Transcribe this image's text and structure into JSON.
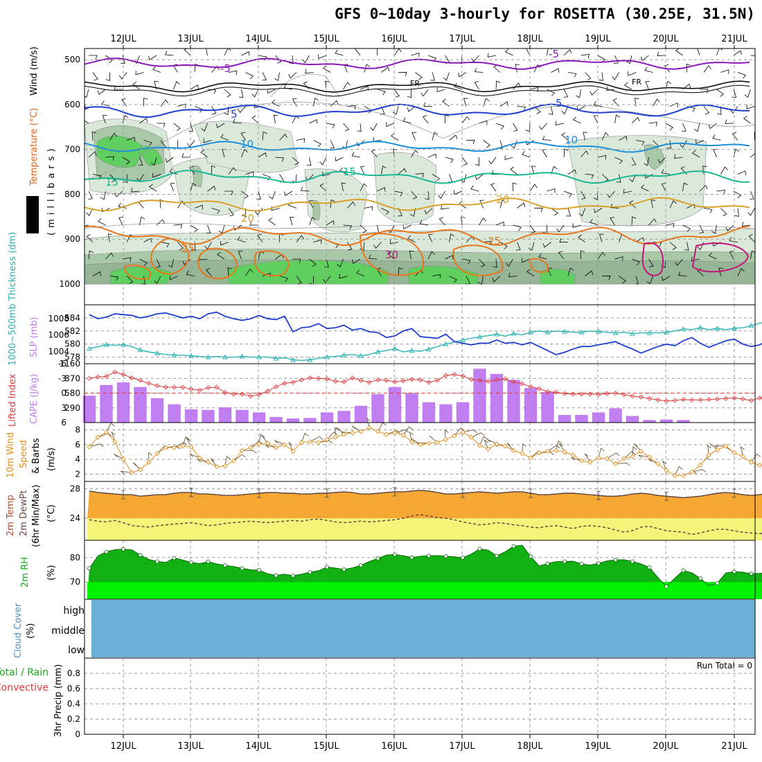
{
  "title": "GFS 0~10day 3-hourly for ROSETTA (30.25E, 31.5N)",
  "colors": {
    "rh_light": "#dbe9db",
    "rh_mid": "#a8c8a8",
    "rh_dark": "#96b496",
    "rh_green": "#5fcf5f",
    "t_minus5": "#8a17b8",
    "t_fr": "#000000",
    "t_5": "#1f3fd0",
    "t_10": "#1a8fdc",
    "t_15": "#17b891",
    "t_20": "#d9a12a",
    "t_25": "#e8761a",
    "t_30": "#c4157a",
    "slp": "#1f3fd0",
    "thick": "#2ab3b3",
    "li": "#e03a3a",
    "cape": "#c07ef0",
    "wind": "#e3901a",
    "barb": "#6b5538",
    "temp_fill": "#f5a733",
    "dew_fill": "#f2f57a",
    "temp_line": "#5a4040",
    "rh_dark_fill": "#12b012",
    "rh_bright": "#00f000",
    "cloud": "#6baed6"
  },
  "dates": [
    "12JUL",
    "13JUL",
    "14JUL",
    "15JUL",
    "16JUL",
    "17JUL",
    "18JUL",
    "19JUL",
    "20JUL",
    "21JUL"
  ],
  "panels": {
    "upper": {
      "ylabel_rh": "RH (%)",
      "ylabel_temp": "Temperature (°C)",
      "ylabel_wind": "Wind (m/s)",
      "ylabel_units": "(millibars)",
      "ticks": [
        "500",
        "600",
        "700",
        "800",
        "900",
        "1000"
      ],
      "contour_labels": [
        "-5",
        "FR",
        "5",
        "10",
        "15",
        "20",
        "25",
        "30",
        "-5",
        "FR",
        "5",
        "10",
        "15",
        "20",
        "25"
      ]
    },
    "slp": {
      "ylabel_thick": "1000~500mb Thickness (dm)",
      "ylabel_slp": "SLP (mb)",
      "left_ticks": [
        "584",
        "582",
        "580",
        "578"
      ],
      "right_ticks": [
        "1008",
        "1006",
        "1004"
      ]
    },
    "cape": {
      "ylabel_li": "Lifted Index",
      "ylabel_cape": "CAPE (J/kg)",
      "left_ticks": [
        "-6",
        "-3",
        "0",
        "3",
        "6"
      ],
      "right_ticks": [
        "1160",
        "870",
        "580",
        "290"
      ]
    },
    "wind": {
      "ylabel_a": "10m Wind",
      "ylabel_b": "Speed",
      "ylabel_c": "& Barbs",
      "ylabel_units": "(m/s)",
      "ticks": [
        "8",
        "6",
        "4",
        "2"
      ]
    },
    "temp": {
      "ylabel_a": "2m Temp",
      "ylabel_b": "2m DewPt",
      "ylabel_c": "(6hr Min/Max)",
      "ylabel_units": "(°C)",
      "ticks": [
        "28",
        "24"
      ]
    },
    "rh": {
      "ylabel_a": "2m RH",
      "ylabel_units": "(%)",
      "ticks": [
        "80",
        "70"
      ]
    },
    "cloud": {
      "ylabel_a": "Cloud Cover",
      "ylabel_units": "(%)",
      "levels": [
        "high",
        "middle",
        "low"
      ]
    },
    "precip": {
      "ylabel_a": "Total / Rain",
      "ylabel_b": "Convective",
      "ylabel_units": "3hr Precip (mm)",
      "ticks": [
        "0.8",
        "0.6",
        "0.4",
        "0.2",
        "0"
      ],
      "run_total": "Run Total = 0"
    }
  },
  "chart_data": [
    {
      "type": "line",
      "title": "1000~500mb Thickness (dm)",
      "x_start": "11JUL 12Z",
      "x_step_hours": 3,
      "ylim": [
        577,
        586
      ],
      "values": [
        579.3,
        579.6,
        579.9,
        579.8,
        579.9,
        579.6,
        579.1,
        578.8,
        578.6,
        578.4,
        578.3,
        578.3,
        578.2,
        578.1,
        578.0,
        578.1,
        578.0,
        578.0,
        578.1,
        578.0,
        578.0,
        578.0,
        577.8,
        577.9,
        577.6,
        577.5,
        577.6,
        577.8,
        578.0,
        578.1,
        578.3,
        578.4,
        578.2,
        578.4,
        578.8,
        579.0,
        579.3,
        578.8,
        579.0,
        578.9,
        579.2,
        579.6,
        580.0,
        580.3,
        580.6,
        580.9,
        581.1,
        581.3,
        581.5,
        581.2,
        581.6,
        581.4,
        581.8,
        582.0,
        581.8,
        582.0,
        581.9,
        581.8,
        581.8,
        582.0,
        581.9,
        581.8,
        581.7,
        581.8,
        581.6,
        581.7,
        581.7,
        581.7,
        581.8,
        582.0,
        582.3,
        582.2,
        582.5,
        582.2,
        582.4,
        582.2,
        582.4,
        582.5,
        582.8,
        583.2,
        583.3,
        583.1,
        583.2,
        583.0,
        582.9,
        582.8,
        583.1,
        583.3,
        583.8,
        583.9,
        583.7,
        583.6,
        583.5,
        583.4,
        583.6,
        583.9,
        583.7,
        584.0,
        583.5,
        583.2,
        583.8,
        584.3,
        584.4,
        584.2,
        584.6,
        584.2,
        584.3,
        584.2,
        584.5,
        584.8,
        584.7,
        584.5,
        584.6,
        584.7,
        584.3,
        584.2,
        584.3,
        584.2,
        584.4,
        584.3,
        584.2,
        584.1,
        584.3,
        584.3
      ]
    },
    {
      "type": "line",
      "title": "SLP (mb)",
      "x_start": "11JUL 12Z",
      "x_step_hours": 3,
      "ylim": [
        1002.5,
        1009.7
      ],
      "values": [
        1008.5,
        1008.0,
        1008.2,
        1008.6,
        1008.5,
        1008.4,
        1008.1,
        1008.3,
        1008.6,
        1008.7,
        1008.4,
        1008.1,
        1008.3,
        1008.0,
        1008.6,
        1008.8,
        1008.3,
        1008.0,
        1007.8,
        1008.0,
        1008.4,
        1008.0,
        1007.9,
        1008.3,
        1006.4,
        1006.9,
        1007.0,
        1007.4,
        1006.8,
        1006.9,
        1007.2,
        1006.6,
        1006.8,
        1006.4,
        1006.3,
        1005.7,
        1005.9,
        1006.5,
        1006.8,
        1005.8,
        1005.7,
        1005.6,
        1006.1,
        1005.2,
        1005.0,
        1004.8,
        1005.0,
        1005.0,
        1005.4,
        1005.0,
        1005.1,
        1004.8,
        1005.1,
        1004.6,
        1004.1,
        1003.6,
        1003.9,
        1004.3,
        1004.6,
        1004.6,
        1004.8,
        1005.0,
        1005.2,
        1004.7,
        1004.3,
        1003.8,
        1004.2,
        1004.6,
        1004.9,
        1004.7,
        1005.3,
        1005.7,
        1005.0,
        1004.5,
        1004.9,
        1005.3,
        1005.5,
        1004.9,
        1004.6,
        1004.8,
        1005.4,
        1005.5,
        1004.7,
        1004.4,
        1004.9,
        1005.2,
        1005.7,
        1006.0,
        1005.5,
        1004.9,
        1004.4,
        1004.6,
        1005.0,
        1005.4,
        1005.1,
        1004.5,
        1004.6,
        1004.9,
        1005.3,
        1005.0,
        1004.4,
        1004.1,
        1004.4,
        1004.6,
        1004.8,
        1004.5,
        1004.0,
        1003.8,
        1003.8,
        1004.2,
        1004.5,
        1004.3,
        1004.0,
        1003.7,
        1003.9,
        1004.1,
        1004.3,
        1004.5,
        1004.0,
        1004.4,
        1004.8,
        1004.4,
        1005.0,
        1005.5
      ]
    },
    {
      "type": "line",
      "title": "Lifted Index",
      "x_start": "11JUL 12Z",
      "x_step_hours": 3,
      "ylim": [
        -6,
        6
      ],
      "values": [
        -3.0,
        -3.3,
        -3.4,
        -4.3,
        -3.8,
        -3.1,
        -2.6,
        -2.0,
        -1.5,
        -1.2,
        -1.2,
        -1.2,
        -0.8,
        -0.6,
        -1.1,
        -1.2,
        -0.1,
        0.2,
        0.2,
        0.6,
        0.3,
        -0.4,
        -1.3,
        -2.0,
        -2.2,
        -2.7,
        -3.1,
        -3.0,
        -2.9,
        -2.4,
        -2.3,
        -3.1,
        -2.6,
        -2.2,
        -2.7,
        -2.6,
        -2.3,
        -2.5,
        -2.8,
        -2.7,
        -2.2,
        -2.6,
        -3.6,
        -3.8,
        -3.5,
        -2.8,
        -2.6,
        -2.4,
        -2.7,
        -2.9,
        -2.3,
        -1.9,
        -1.3,
        -0.9,
        -0.3,
        -0.2,
        0.1,
        0.2,
        0.2,
        0.2,
        0.3,
        0.1,
        0.0,
        0.3,
        0.6,
        0.8,
        1.1,
        1.4,
        1.6,
        1.5,
        1.3,
        1.4,
        1.4,
        1.3,
        1.2,
        1.1,
        1.0,
        1.2,
        1.5,
        1.0,
        0.8,
        0.4,
        0.7,
        1.2,
        0.4,
        -0.1,
        0.5,
        0.1,
        -0.1,
        -0.4,
        -0.8,
        -1.5,
        -2.2,
        -2.0,
        -1.5,
        -1.1,
        -1.0,
        -1.5,
        -2.0,
        -2.5,
        -2.4,
        -2.7,
        -2.8,
        -3.1,
        -2.8,
        -2.4,
        -2.7,
        -2.8,
        -3.0,
        -3.1,
        -3.4,
        -3.0,
        -2.3,
        -2.2,
        -1.6,
        -1.8,
        -2.2,
        -2.5,
        -2.1,
        -1.6,
        -1.4,
        -0.9,
        -1.0,
        -0.9
      ]
    },
    {
      "type": "bar",
      "title": "CAPE (J/kg)",
      "x_start": "11JUL 12Z",
      "x_step_hours": 6,
      "ylim": [
        0,
        1160
      ],
      "values": [
        530,
        740,
        790,
        700,
        480,
        360,
        260,
        250,
        300,
        250,
        200,
        110,
        80,
        90,
        200,
        230,
        330,
        560,
        700,
        570,
        400,
        360,
        400,
        1060,
        960,
        840,
        680,
        600,
        150,
        150,
        200,
        280,
        130,
        50,
        60,
        50,
        0,
        0,
        0,
        0,
        0,
        0,
        0,
        0,
        0,
        0,
        0,
        0,
        0,
        0,
        0,
        0,
        0,
        0,
        0,
        60,
        0,
        50,
        150,
        200,
        240,
        230,
        350,
        480,
        270,
        160,
        190,
        300,
        260,
        230,
        260,
        450,
        400,
        600,
        490,
        110,
        160,
        20,
        120
      ]
    },
    {
      "type": "line",
      "title": "10m Wind Speed (m/s)",
      "x_start": "11JUL 12Z",
      "x_step_hours": 3,
      "ylim": [
        1,
        9
      ],
      "values": [
        5.7,
        7.0,
        7.7,
        6.4,
        4.0,
        2.2,
        2.6,
        3.6,
        4.8,
        5.6,
        5.6,
        5.8,
        5.7,
        4.2,
        3.6,
        3.0,
        3.1,
        3.8,
        5.2,
        5.6,
        6.1,
        6.2,
        5.6,
        6.0,
        5.1,
        6.3,
        6.4,
        6.3,
        6.7,
        7.0,
        7.4,
        7.6,
        7.8,
        8.3,
        7.8,
        7.4,
        7.6,
        7.3,
        6.4,
        6.0,
        6.2,
        6.3,
        6.7,
        7.2,
        7.7,
        7.0,
        5.9,
        5.4,
        6.1,
        5.8,
        5.2,
        4.8,
        4.2,
        4.9,
        5.1,
        5.2,
        5.0,
        4.6,
        3.8,
        3.6,
        4.2,
        4.1,
        3.4,
        4.1,
        4.4,
        5.1,
        4.3,
        3.4,
        2.5,
        1.8,
        1.8,
        2.3,
        3.2,
        4.6,
        5.3,
        5.8,
        4.9,
        4.4,
        3.6,
        3.2,
        3.1,
        4.2,
        5.0,
        4.1,
        3.0,
        2.8,
        3.6,
        4.8,
        5.0,
        4.3,
        3.2,
        3.4,
        4.3,
        5.1,
        4.8,
        3.6,
        2.8,
        3.2,
        3.7,
        4.2,
        4.4,
        3.8,
        3.6,
        4.5,
        5.4,
        5.0,
        3.8,
        2.8,
        2.4,
        1.8,
        2.4,
        3.5,
        4.7,
        5.1,
        5.9,
        6.4,
        5.8,
        4.6,
        3.9,
        3.2,
        3.5,
        4.3,
        4.7,
        4.2
      ]
    },
    {
      "type": "area",
      "title": "2m Temp / 2m DewPt (°C)",
      "x_start": "11JUL 12Z",
      "x_step_hours": 3,
      "ylim": [
        21,
        29
      ],
      "series": [
        {
          "name": "2m Temp",
          "values": [
            27.7,
            27.5,
            27.4,
            27.3,
            27.2,
            27.2,
            27.0,
            27.1,
            27.2,
            27.2,
            27.4,
            27.5,
            27.5,
            27.3,
            27.3,
            27.2,
            27.1,
            27.1,
            27.2,
            27.3,
            27.4,
            27.5,
            27.5,
            27.4,
            27.4,
            27.3,
            27.3,
            27.4,
            27.4,
            27.5,
            27.6,
            27.5,
            27.3,
            27.3,
            27.4,
            27.5,
            27.6,
            27.6,
            27.7,
            27.8,
            27.7,
            27.5,
            27.3,
            27.3,
            27.4,
            27.5,
            27.6,
            27.5,
            27.4,
            27.5,
            27.6,
            27.6,
            27.4,
            27.2,
            27.2,
            27.3,
            27.4,
            27.4,
            27.3,
            27.2,
            27.1,
            27.0,
            27.0,
            27.1,
            27.3,
            27.4,
            27.3,
            27.1,
            27.0,
            26.9,
            26.8,
            26.9,
            27.0,
            27.2,
            27.4,
            27.5,
            27.4,
            27.2,
            27.1,
            27.2,
            27.4,
            27.4,
            27.3,
            27.2,
            27.2,
            27.3,
            27.4,
            27.5,
            27.5,
            27.4,
            27.3,
            27.4,
            27.6,
            27.8,
            28.0,
            28.0,
            27.9,
            27.8,
            27.8,
            27.9,
            28.0,
            27.9,
            27.8,
            27.7,
            27.7,
            27.6,
            27.6,
            27.5,
            27.5,
            27.6,
            27.8,
            27.9,
            27.8,
            27.7,
            27.6,
            27.6,
            27.7,
            27.7,
            27.6,
            27.5,
            27.3,
            27.2,
            27.1,
            27.0
          ]
        },
        {
          "name": "2m DewPt",
          "values": [
            23.8,
            23.6,
            23.5,
            23.7,
            23.4,
            23.0,
            22.9,
            22.8,
            23.0,
            23.1,
            23.2,
            23.3,
            23.4,
            23.2,
            23.0,
            23.1,
            23.3,
            23.4,
            23.5,
            23.6,
            23.5,
            23.4,
            23.5,
            23.6,
            23.7,
            23.6,
            23.8,
            23.9,
            23.7,
            23.5,
            23.4,
            23.5,
            23.6,
            23.5,
            23.6,
            23.7,
            23.8,
            24.0,
            24.3,
            24.5,
            24.3,
            24.1,
            24.0,
            23.8,
            23.5,
            23.3,
            23.1,
            23.2,
            23.4,
            23.3,
            23.1,
            23.0,
            22.8,
            22.7,
            22.9,
            23.0,
            22.8,
            22.6,
            22.9,
            23.0,
            22.9,
            22.7,
            22.4,
            22.1,
            22.3,
            22.8,
            22.9,
            22.6,
            22.3,
            22.2,
            22.1,
            21.8,
            22.0,
            22.3,
            22.5,
            22.5,
            22.3,
            22.1,
            22.0,
            21.9,
            22.0,
            22.2,
            22.4,
            22.6,
            22.7,
            23.0,
            23.2,
            23.3,
            23.5,
            23.6,
            23.8,
            23.9,
            23.7,
            23.5,
            23.6,
            23.8,
            24.0,
            23.9,
            23.7,
            23.8,
            23.9,
            23.6,
            23.5,
            23.7,
            23.9,
            24.1,
            24.2,
            24.0,
            23.9,
            23.8,
            23.6,
            23.7,
            23.8,
            23.9,
            24.0,
            24.1,
            23.8,
            23.5,
            23.4,
            23.3,
            23.3,
            23.4,
            23.5,
            23.6
          ]
        }
      ]
    },
    {
      "type": "area",
      "title": "2m RH (%)",
      "x_start": "11JUL 12Z",
      "x_step_hours": 3,
      "ylim": [
        63,
        87
      ],
      "values": [
        75.6,
        80.6,
        82.3,
        83.2,
        83.4,
        83.1,
        81.0,
        79.2,
        78.4,
        78.0,
        79.8,
        79.0,
        78.0,
        77.5,
        78.3,
        77.4,
        76.8,
        76.3,
        75.6,
        75.0,
        74.8,
        73.4,
        72.7,
        73.2,
        72.6,
        73.2,
        74.0,
        74.6,
        76.1,
        75.7,
        75.1,
        75.8,
        76.8,
        78.4,
        79.6,
        81.0,
        81.2,
        80.7,
        80.0,
        80.5,
        80.7,
        80.8,
        80.5,
        80.3,
        79.9,
        81.4,
        83.5,
        83.0,
        80.7,
        82.3,
        84.6,
        85.0,
        80.4,
        76.6,
        77.5,
        78.3,
        78.4,
        78.5,
        77.4,
        76.9,
        77.6,
        78.6,
        79.0,
        79.1,
        78.4,
        77.4,
        76.0,
        71.8,
        68.2,
        71.6,
        74.7,
        73.8,
        71.5,
        68.5,
        69.5,
        73.7,
        74.2,
        74.0,
        73.4,
        73.5,
        74.0,
        74.0,
        73.1,
        72.7,
        73.2,
        72.1,
        71.2,
        69.2,
        68.7,
        68.9,
        68.8,
        68.9,
        71.8,
        75.0,
        76.9,
        76.2,
        76.5,
        78.4,
        77.9,
        74.4,
        75.6,
        78.3,
        78.5,
        79.6,
        78.9,
        79.0,
        79.7,
        80.5,
        80.4,
        79.8,
        79.4,
        80.0,
        79.3,
        78.9,
        79.6,
        80.5,
        80.2,
        79.4,
        79.8,
        79.2,
        80.0,
        79.7,
        79.8,
        80.8,
        82.5
      ]
    },
    {
      "type": "area",
      "title": "Cloud Cover (%)",
      "series": [
        {
          "name": "high",
          "values": [
            100
          ]
        },
        {
          "name": "middle",
          "values": [
            100
          ]
        },
        {
          "name": "low",
          "values": [
            100
          ]
        }
      ]
    },
    {
      "type": "bar",
      "title": "3hr Precip (mm)",
      "ylim": [
        0,
        1
      ],
      "values": [
        0
      ],
      "run_total": 0
    }
  ]
}
